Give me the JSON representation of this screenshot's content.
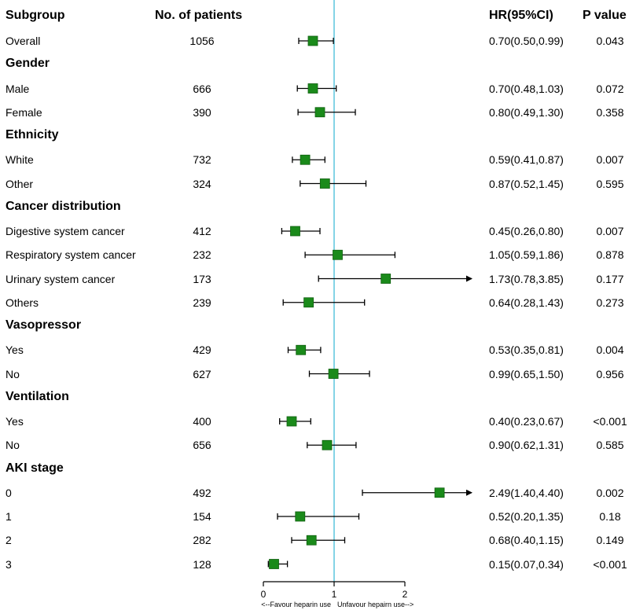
{
  "headers": {
    "subgroup": "Subgroup",
    "patients": "No. of patients",
    "hr": "HR(95%CI)",
    "pvalue": "P value"
  },
  "chart_data": {
    "type": "forest",
    "reference_line": 1,
    "xlim": [
      0,
      2
    ],
    "xticks": [
      "0",
      "1",
      "2"
    ],
    "favour_left": "<--Favour heparin use",
    "favour_right": "Unfavour hepairn use-->",
    "rows": [
      {
        "kind": "item",
        "label": "Overall",
        "n": "1056",
        "hr": 0.7,
        "lo": 0.5,
        "hi": 0.99,
        "hr_text": "0.70(0.50,0.99)",
        "p": "0.043"
      },
      {
        "kind": "group",
        "label": "Gender"
      },
      {
        "kind": "item",
        "label": "Male",
        "n": "666",
        "hr": 0.7,
        "lo": 0.48,
        "hi": 1.03,
        "hr_text": "0.70(0.48,1.03)",
        "p": "0.072"
      },
      {
        "kind": "item",
        "label": "Female",
        "n": "390",
        "hr": 0.8,
        "lo": 0.49,
        "hi": 1.3,
        "hr_text": "0.80(0.49,1.30)",
        "p": "0.358"
      },
      {
        "kind": "group",
        "label": "Ethnicity"
      },
      {
        "kind": "item",
        "label": "White",
        "n": "732",
        "hr": 0.59,
        "lo": 0.41,
        "hi": 0.87,
        "hr_text": "0.59(0.41,0.87)",
        "p": "0.007"
      },
      {
        "kind": "item",
        "label": "Other",
        "n": "324",
        "hr": 0.87,
        "lo": 0.52,
        "hi": 1.45,
        "hr_text": "0.87(0.52,1.45)",
        "p": "0.595"
      },
      {
        "kind": "group",
        "label": "Cancer distribution"
      },
      {
        "kind": "item",
        "label": "Digestive system cancer",
        "n": "412",
        "hr": 0.45,
        "lo": 0.26,
        "hi": 0.8,
        "hr_text": "0.45(0.26,0.80)",
        "p": "0.007"
      },
      {
        "kind": "item",
        "label": "Respiratory system cancer",
        "n": "232",
        "hr": 1.05,
        "lo": 0.59,
        "hi": 1.86,
        "hr_text": "1.05(0.59,1.86)",
        "p": "0.878"
      },
      {
        "kind": "item",
        "label": "Urinary system cancer",
        "n": "173",
        "hr": 1.73,
        "lo": 0.78,
        "hi": 3.85,
        "hr_text": "1.73(0.78,3.85)",
        "p": "0.177"
      },
      {
        "kind": "item",
        "label": "Others",
        "n": "239",
        "hr": 0.64,
        "lo": 0.28,
        "hi": 1.43,
        "hr_text": "0.64(0.28,1.43)",
        "p": "0.273"
      },
      {
        "kind": "group",
        "label": "Vasopressor"
      },
      {
        "kind": "item",
        "label": "Yes",
        "n": "429",
        "hr": 0.53,
        "lo": 0.35,
        "hi": 0.81,
        "hr_text": "0.53(0.35,0.81)",
        "p": "0.004"
      },
      {
        "kind": "item",
        "label": "No",
        "n": "627",
        "hr": 0.99,
        "lo": 0.65,
        "hi": 1.5,
        "hr_text": "0.99(0.65,1.50)",
        "p": "0.956"
      },
      {
        "kind": "group",
        "label": "Ventilation"
      },
      {
        "kind": "item",
        "label": "Yes",
        "n": "400",
        "hr": 0.4,
        "lo": 0.23,
        "hi": 0.67,
        "hr_text": "0.40(0.23,0.67)",
        "p": "<0.001"
      },
      {
        "kind": "item",
        "label": "No",
        "n": "656",
        "hr": 0.9,
        "lo": 0.62,
        "hi": 1.31,
        "hr_text": "0.90(0.62,1.31)",
        "p": "0.585"
      },
      {
        "kind": "group",
        "label": "AKI stage"
      },
      {
        "kind": "item",
        "label": "0",
        "n": "492",
        "hr": 2.49,
        "lo": 1.4,
        "hi": 4.4,
        "hr_text": "2.49(1.40,4.40)",
        "p": "0.002"
      },
      {
        "kind": "item",
        "label": "1",
        "n": "154",
        "hr": 0.52,
        "lo": 0.2,
        "hi": 1.35,
        "hr_text": "0.52(0.20,1.35)",
        "p": "0.18"
      },
      {
        "kind": "item",
        "label": "2",
        "n": "282",
        "hr": 0.68,
        "lo": 0.4,
        "hi": 1.15,
        "hr_text": "0.68(0.40,1.15)",
        "p": "0.149"
      },
      {
        "kind": "item",
        "label": "3",
        "n": "128",
        "hr": 0.15,
        "lo": 0.07,
        "hi": 0.34,
        "hr_text": "0.15(0.07,0.34)",
        "p": "<0.001"
      }
    ]
  },
  "colors": {
    "marker": "#1a8a1a",
    "marker_edge": "#0f5f0f",
    "reference_line": "#66c9e0",
    "ci_line": "#000000"
  }
}
